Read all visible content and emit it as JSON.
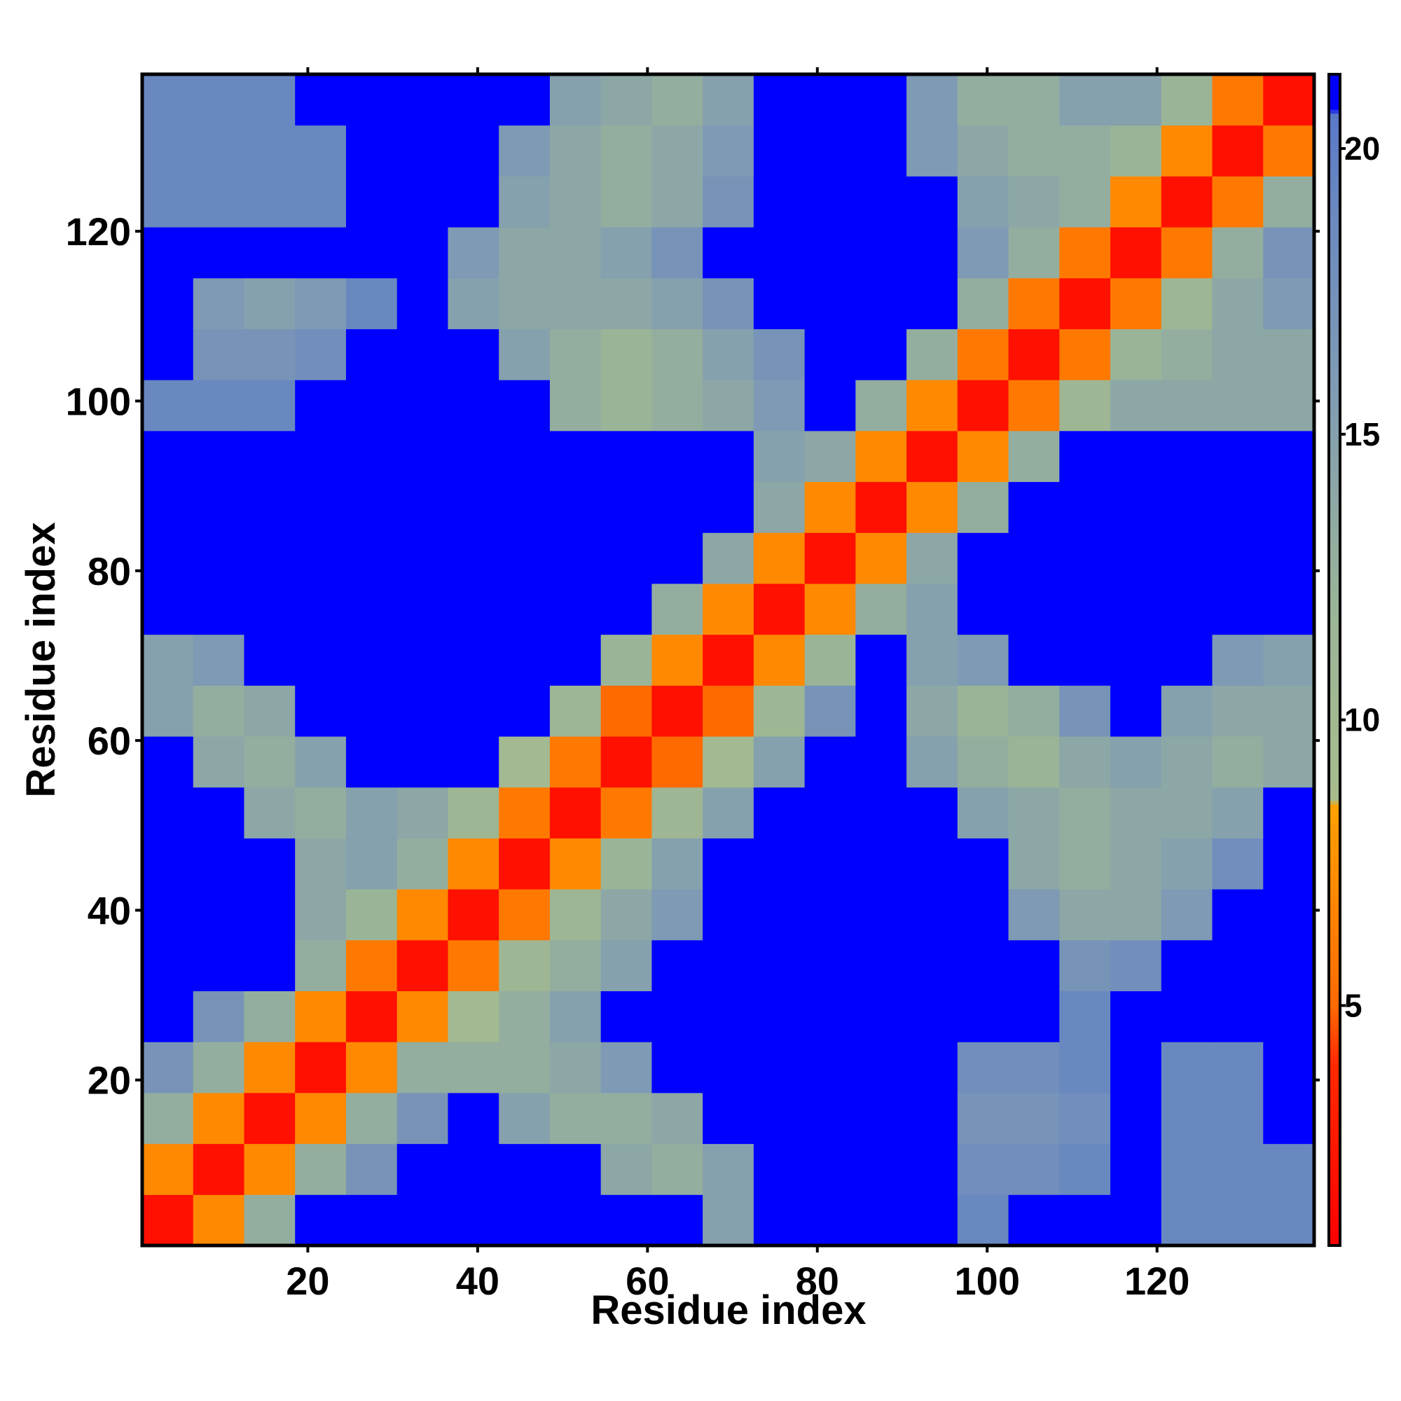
{
  "chart_data": {
    "type": "heatmap",
    "xlabel": "Residue index",
    "ylabel": "Residue index",
    "x": [
      3.5,
      9.5,
      15.5,
      21.5,
      27.5,
      33.5,
      39.5,
      45.5,
      51.5,
      57.5,
      63.5,
      69.5,
      75.5,
      81.5,
      87.5,
      93.5,
      99.5,
      105.5,
      111.5,
      117.5,
      123.5,
      129.5,
      135.5
    ],
    "y": [
      3.5,
      9.5,
      15.5,
      21.5,
      27.5,
      33.5,
      39.5,
      45.5,
      51.5,
      57.5,
      63.5,
      69.5,
      75.5,
      81.5,
      87.5,
      93.5,
      99.5,
      105.5,
      111.5,
      117.5,
      123.5,
      129.5,
      135.5
    ],
    "z": [
      [
        2,
        7,
        13,
        21,
        21,
        21,
        21,
        21,
        21,
        21,
        21,
        15,
        21,
        21,
        21,
        21,
        19,
        21,
        21,
        21,
        19,
        19,
        19
      ],
      [
        7,
        2,
        7,
        13,
        17,
        21,
        21,
        21,
        21,
        14,
        13,
        15,
        21,
        21,
        21,
        21,
        18,
        18,
        19,
        21,
        19,
        19,
        19
      ],
      [
        13,
        7,
        2,
        7,
        13,
        17,
        21,
        15,
        13,
        13,
        14,
        21,
        21,
        21,
        21,
        21,
        17,
        17,
        18,
        21,
        19,
        19,
        21
      ],
      [
        17,
        13,
        7,
        2,
        7,
        13,
        13,
        13,
        14,
        16,
        21,
        21,
        21,
        21,
        21,
        21,
        18,
        18,
        19,
        21,
        19,
        19,
        21
      ],
      [
        21,
        17,
        13,
        7,
        2,
        7,
        10,
        13,
        15,
        21,
        21,
        21,
        21,
        21,
        21,
        21,
        21,
        21,
        19,
        21,
        21,
        21,
        21
      ],
      [
        21,
        21,
        21,
        13,
        6,
        2,
        6,
        11,
        13,
        15,
        21,
        21,
        21,
        21,
        21,
        21,
        21,
        21,
        17,
        18,
        21,
        21,
        21
      ],
      [
        21,
        21,
        21,
        14,
        12,
        7,
        2,
        6,
        11,
        14,
        16,
        21,
        21,
        21,
        21,
        21,
        21,
        16,
        14,
        14,
        16,
        21,
        21
      ],
      [
        21,
        21,
        21,
        14,
        15,
        13,
        7,
        2,
        7,
        12,
        15,
        21,
        21,
        21,
        21,
        21,
        21,
        14,
        13,
        14,
        15,
        18,
        21
      ],
      [
        21,
        21,
        14,
        13,
        15,
        14,
        11,
        6,
        2,
        6,
        11,
        15,
        21,
        21,
        21,
        21,
        15,
        14,
        13,
        14,
        14,
        15,
        21
      ],
      [
        21,
        14,
        13,
        15,
        21,
        21,
        21,
        10,
        6,
        2,
        5,
        10,
        15,
        21,
        21,
        15,
        13,
        12,
        14,
        15,
        14,
        13,
        14
      ],
      [
        15,
        13,
        14,
        21,
        21,
        21,
        21,
        21,
        11,
        5,
        2,
        5,
        11,
        17,
        21,
        14,
        12,
        13,
        17,
        21,
        15,
        14,
        14
      ],
      [
        15,
        16,
        21,
        21,
        21,
        21,
        21,
        21,
        21,
        12,
        7,
        2,
        7,
        12,
        21,
        15,
        16,
        21,
        21,
        21,
        21,
        16,
        15
      ],
      [
        21,
        21,
        21,
        21,
        21,
        21,
        21,
        21,
        21,
        21,
        13,
        7,
        2,
        7,
        13,
        15,
        21,
        21,
        21,
        21,
        21,
        21,
        21
      ],
      [
        21,
        21,
        21,
        21,
        21,
        21,
        21,
        21,
        21,
        21,
        21,
        14,
        7,
        2,
        7,
        14,
        21,
        21,
        21,
        21,
        21,
        21,
        21
      ],
      [
        21,
        21,
        21,
        21,
        21,
        21,
        21,
        21,
        21,
        21,
        21,
        21,
        14,
        7,
        2,
        7,
        13,
        21,
        21,
        21,
        21,
        21,
        21
      ],
      [
        21,
        21,
        21,
        21,
        21,
        21,
        21,
        21,
        21,
        21,
        21,
        21,
        15,
        14,
        7,
        2,
        7,
        13,
        21,
        21,
        21,
        21,
        21
      ],
      [
        19,
        19,
        19,
        21,
        21,
        21,
        21,
        21,
        13,
        12,
        13,
        14,
        16,
        21,
        13,
        7,
        2,
        6,
        11,
        14,
        14,
        14,
        14
      ],
      [
        21,
        17,
        17,
        18,
        21,
        21,
        21,
        15,
        13,
        12,
        13,
        15,
        17,
        21,
        21,
        13,
        6,
        2,
        6,
        12,
        13,
        14,
        14
      ],
      [
        21,
        16,
        15,
        16,
        19,
        21,
        15,
        14,
        14,
        14,
        15,
        17,
        21,
        21,
        21,
        21,
        13,
        6,
        2,
        6,
        11,
        14,
        16
      ],
      [
        21,
        21,
        21,
        21,
        21,
        21,
        16,
        14,
        14,
        15,
        17,
        21,
        21,
        21,
        21,
        21,
        16,
        13,
        6,
        2,
        6,
        13,
        17
      ],
      [
        19,
        19,
        19,
        19,
        21,
        21,
        21,
        15,
        14,
        13,
        14,
        17,
        21,
        21,
        21,
        21,
        15,
        14,
        13,
        7,
        2,
        6,
        13
      ],
      [
        19,
        19,
        19,
        19,
        21,
        21,
        21,
        16,
        14,
        13,
        14,
        16,
        21,
        21,
        21,
        16,
        14,
        13,
        13,
        12,
        7,
        2,
        6
      ],
      [
        19,
        19,
        19,
        21,
        21,
        21,
        21,
        21,
        15,
        14,
        13,
        15,
        21,
        21,
        21,
        16,
        13,
        13,
        15,
        15,
        12,
        6,
        2
      ]
    ],
    "xlim": [
      0.5,
      138.5
    ],
    "ylim": [
      0.5,
      138.5
    ],
    "xticks": [
      20,
      40,
      60,
      80,
      100,
      120
    ],
    "yticks": [
      20,
      40,
      60,
      80,
      100,
      120
    ],
    "zlim": [
      0.8,
      21.3
    ],
    "zticks": [
      5,
      10,
      15,
      20
    ],
    "colorscale": [
      [
        0.8,
        "#ff0000"
      ],
      [
        4,
        "#ff2a00"
      ],
      [
        5,
        "#ff6a00"
      ],
      [
        8.5,
        "#ffa000"
      ],
      [
        8.6,
        "#a8bc8c"
      ],
      [
        12,
        "#9ab498"
      ],
      [
        16,
        "#7e9ab4"
      ],
      [
        19,
        "#6a88c0"
      ],
      [
        20.6,
        "#5a78c8"
      ],
      [
        20.7,
        "#0000ff"
      ],
      [
        21.3,
        "#0000ff"
      ]
    ]
  }
}
